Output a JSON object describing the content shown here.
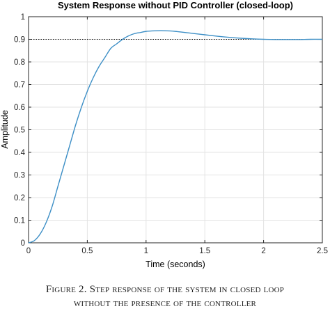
{
  "chart_data": {
    "type": "line",
    "title": "System Response without PID Controller (closed-loop)",
    "xlabel": "Time (seconds)",
    "ylabel": "Amplitude",
    "xlim": [
      0,
      2.5
    ],
    "ylim": [
      0,
      1
    ],
    "x_ticks": [
      "0",
      "0.5",
      "1",
      "1.5",
      "2",
      "2.5"
    ],
    "y_ticks": [
      "0",
      "0.1",
      "0.2",
      "0.3",
      "0.4",
      "0.5",
      "0.6",
      "0.7",
      "0.8",
      "0.9",
      "1"
    ],
    "grid": true,
    "steady_state_reference": 0.9,
    "line_color": "#3d8fc6",
    "series": [
      {
        "x": [
          0,
          0.05,
          0.1,
          0.15,
          0.2,
          0.25,
          0.3,
          0.35,
          0.4,
          0.45,
          0.5,
          0.55,
          0.6,
          0.65,
          0.7,
          0.75,
          0.8,
          0.85,
          0.9,
          0.95,
          1.0,
          1.05,
          1.1,
          1.15,
          1.2,
          1.25,
          1.3,
          1.35,
          1.4,
          1.5,
          1.6,
          1.7,
          1.8,
          1.9,
          2.0,
          2.1,
          2.2,
          2.3,
          2.4,
          2.5
        ],
        "y": [
          0,
          0.01,
          0.04,
          0.09,
          0.16,
          0.25,
          0.34,
          0.43,
          0.52,
          0.6,
          0.67,
          0.73,
          0.78,
          0.82,
          0.86,
          0.88,
          0.9,
          0.915,
          0.925,
          0.93,
          0.935,
          0.937,
          0.938,
          0.938,
          0.937,
          0.935,
          0.932,
          0.929,
          0.926,
          0.92,
          0.914,
          0.909,
          0.905,
          0.902,
          0.9,
          0.899,
          0.899,
          0.899,
          0.9,
          0.9
        ]
      }
    ]
  },
  "caption": {
    "line1": "Figure 2. Step response of the system in closed loop",
    "line2": "without the presence of the controller"
  }
}
